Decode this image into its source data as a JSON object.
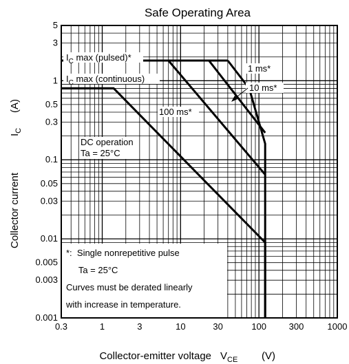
{
  "chart_data": {
    "type": "line",
    "title": "Safe Operating Area",
    "xlabel": "Collector-emitter voltage",
    "xlabel_symbol": "V",
    "xlabel_sub": "CE",
    "xlabel_unit": "(V)",
    "ylabel": "Collector current",
    "ylabel_symbol": "I",
    "ylabel_sub": "C",
    "ylabel_unit": "(A)",
    "xscale": "log",
    "yscale": "log",
    "xlim": [
      0.3,
      1000
    ],
    "ylim": [
      0.001,
      5
    ],
    "x_ticks": [
      {
        "v": 0.3,
        "label": "0.3"
      },
      {
        "v": 1,
        "label": "1"
      },
      {
        "v": 3,
        "label": "3"
      },
      {
        "v": 10,
        "label": "10"
      },
      {
        "v": 30,
        "label": "30"
      },
      {
        "v": 100,
        "label": "100"
      },
      {
        "v": 300,
        "label": "300"
      },
      {
        "v": 1000,
        "label": "1000"
      }
    ],
    "y_ticks": [
      {
        "v": 0.001,
        "label": "0.001"
      },
      {
        "v": 0.003,
        "label": "0.003"
      },
      {
        "v": 0.005,
        "label": "0.005"
      },
      {
        "v": 0.01,
        "label": "0.01"
      },
      {
        "v": 0.03,
        "label": "0.03"
      },
      {
        "v": 0.05,
        "label": "0.05"
      },
      {
        "v": 0.1,
        "label": "0.1"
      },
      {
        "v": 0.3,
        "label": "0.3"
      },
      {
        "v": 0.5,
        "label": "0.5"
      },
      {
        "v": 1,
        "label": "1"
      },
      {
        "v": 3,
        "label": "3"
      },
      {
        "v": 5,
        "label": "5"
      }
    ],
    "grid": true,
    "series": [
      {
        "name": "I_C max (pulsed)",
        "x": [
          0.3,
          40
        ],
        "y": [
          1.8,
          1.8
        ]
      },
      {
        "name": "I_C max (continuous)",
        "x": [
          0.3,
          1.4
        ],
        "y": [
          0.8,
          0.8
        ]
      },
      {
        "name": "DC operation",
        "x": [
          0.3,
          1.4,
          120,
          120
        ],
        "y": [
          0.8,
          0.8,
          0.009,
          0.001
        ]
      },
      {
        "name": "100 ms*",
        "x": [
          7,
          120
        ],
        "y": [
          1.8,
          0.065
        ]
      },
      {
        "name": "10 ms*",
        "x": [
          23,
          120
        ],
        "y": [
          1.8,
          0.22
        ]
      },
      {
        "name": "1 ms*",
        "x": [
          40,
          75,
          120,
          120
        ],
        "y": [
          1.8,
          0.8,
          0.16,
          0.001
        ]
      }
    ],
    "annotations": {
      "ic_pulsed": {
        "main": "I",
        "sub": "C",
        "rest": " max (pulsed)*"
      },
      "ic_cont": {
        "main": "I",
        "sub": "C",
        "rest": " max (continuous)"
      },
      "ms1": "1 ms*",
      "ms10": "10 ms*",
      "ms100": "100 ms*",
      "dc_line1": "DC operation",
      "dc_line2": "Ta = 25°C",
      "note": [
        "*:  Single nonrepetitive pulse",
        "     Ta = 25°C",
        "Curves must be derated linearly",
        "with increase in temperature."
      ]
    }
  }
}
